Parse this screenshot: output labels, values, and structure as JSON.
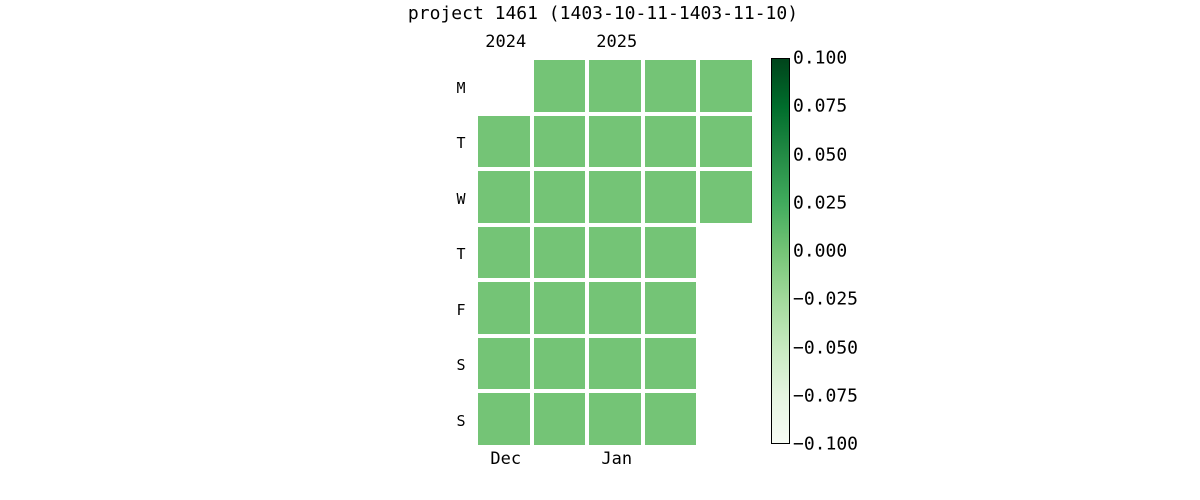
{
  "chart_data": {
    "type": "heatmap",
    "title": "project 1461 (1403-10-11-1403-11-10)",
    "layout_hint": "calendar heatmap, rows = weekdays Mon-Sun, columns = 5 weeks, colorbar on right",
    "day_labels": [
      "M",
      "T",
      "W",
      "T",
      "F",
      "S",
      "S"
    ],
    "year_labels": [
      {
        "text": "2024",
        "week": 0
      },
      {
        "text": "2025",
        "week": 2
      }
    ],
    "month_labels": [
      {
        "text": "Dec",
        "week": 0
      },
      {
        "text": "Jan",
        "week": 2
      }
    ],
    "weeks": 5,
    "grid": [
      [
        0,
        1,
        1,
        1,
        1
      ],
      [
        1,
        1,
        1,
        1,
        1
      ],
      [
        1,
        1,
        1,
        1,
        1
      ],
      [
        1,
        1,
        1,
        1,
        0
      ],
      [
        1,
        1,
        1,
        1,
        0
      ],
      [
        1,
        1,
        1,
        1,
        0
      ],
      [
        1,
        1,
        1,
        1,
        0
      ]
    ],
    "cell_value": 0.0,
    "cell_color": "#74c476",
    "colorbar": {
      "vmin": -0.1,
      "vmax": 0.1,
      "ticks": [
        "0.100",
        "0.075",
        "0.050",
        "0.025",
        "0.000",
        "−0.025",
        "−0.050",
        "−0.075",
        "−0.100"
      ],
      "colormap": "Greens",
      "gradient_stops_top_to_bottom": [
        "#00441b",
        "#006d2c",
        "#238b45",
        "#41ab5d",
        "#74c476",
        "#a1d99b",
        "#c7e9c0",
        "#e5f5e0",
        "#f7fcf5"
      ]
    }
  }
}
